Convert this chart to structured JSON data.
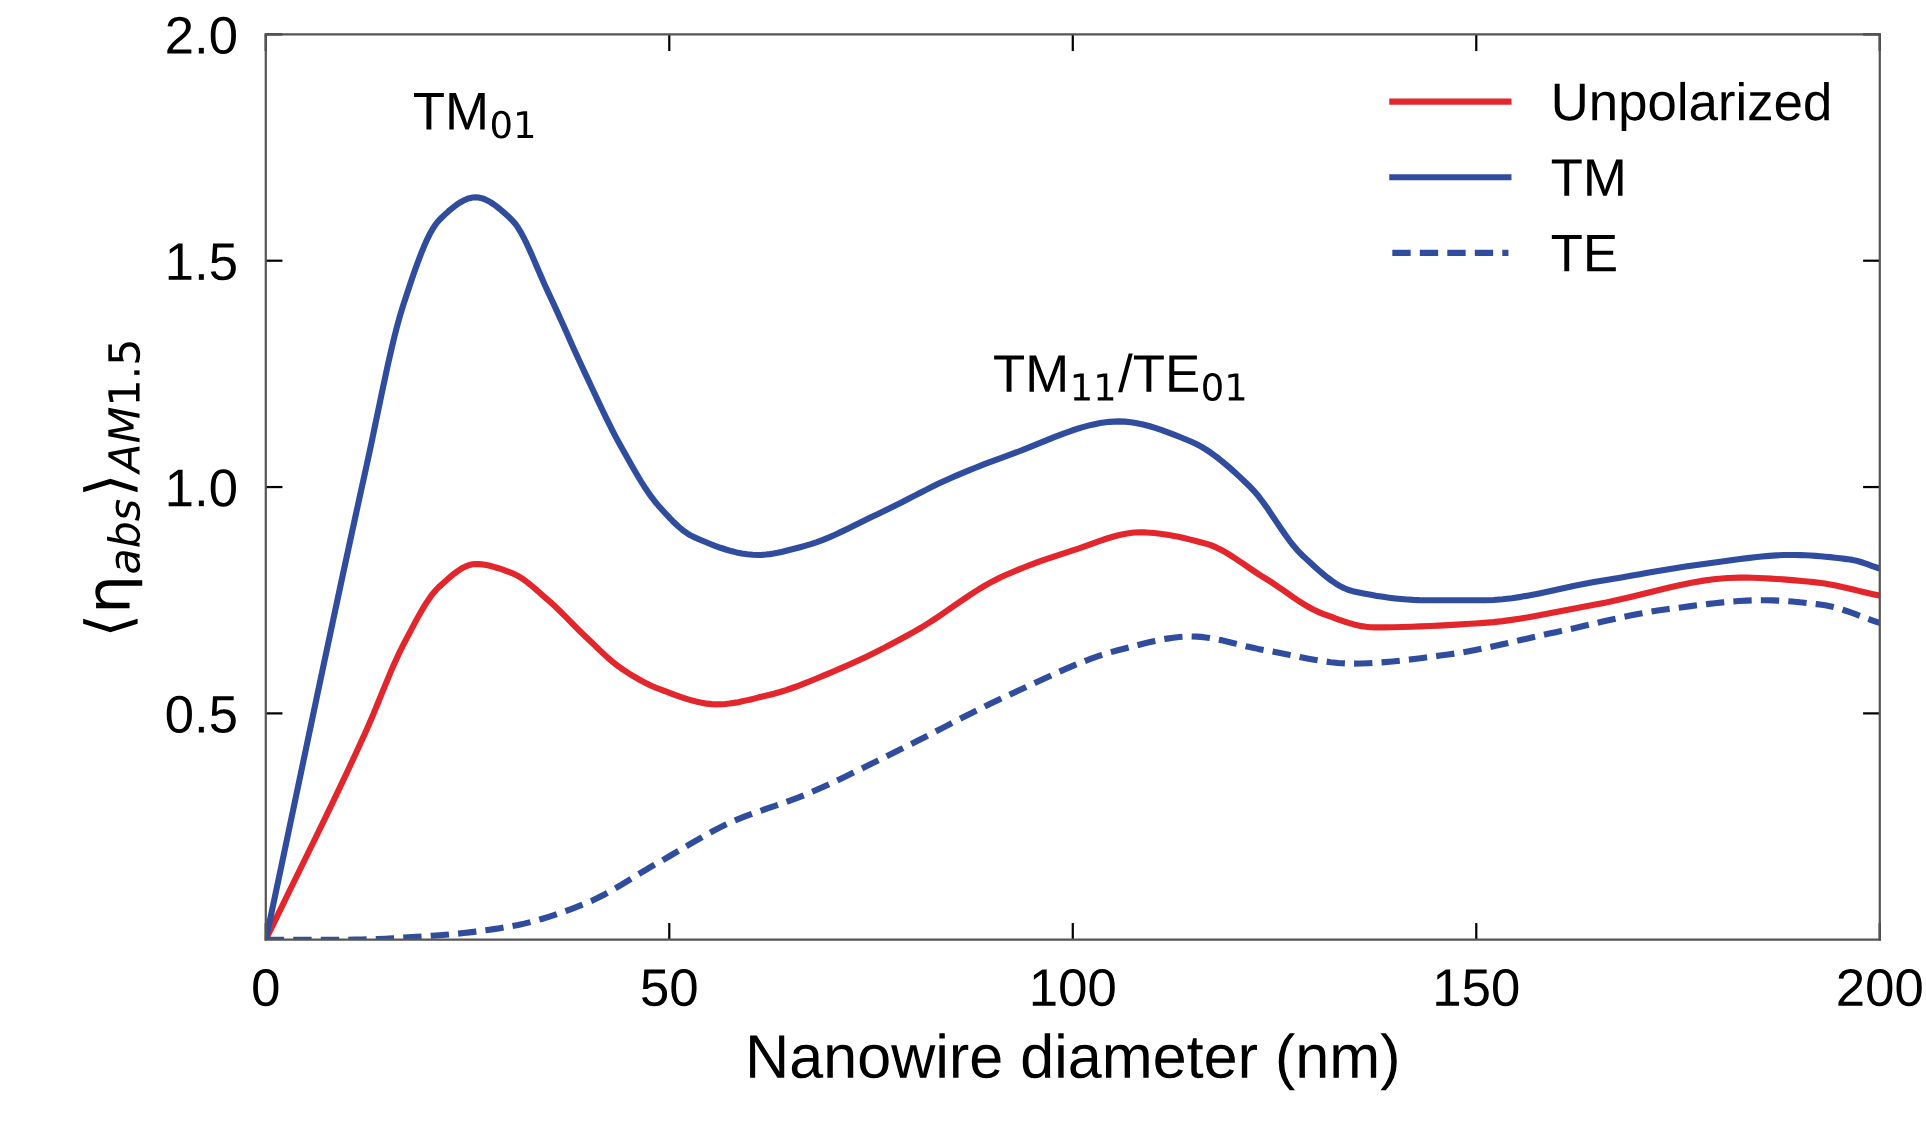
{
  "chart_data": {
    "type": "line",
    "xlabel": "Nanowire diameter (nm)",
    "ylabel": "⟨η$_{abs}$⟩$_{AM1.5}$",
    "xlim": [
      0,
      200
    ],
    "ylim": [
      0,
      2
    ],
    "xticks": [
      0,
      50,
      100,
      150,
      200
    ],
    "yticks": [
      0.5,
      {
        "value": 1,
        "label": "1.0"
      },
      1.5,
      {
        "value": 2,
        "label": "2.0"
      }
    ],
    "grid": false,
    "legend": "top right",
    "annotations": [
      "TM$_{01}$",
      "TM$_{11}$/TE$_{01}$"
    ],
    "series": [
      {
        "name": "Unpolarized",
        "color": "#e3262c",
        "line_style": "solid",
        "x": [
          0,
          12.4,
          17,
          21.5,
          26,
          30.5,
          35,
          39.6,
          44,
          48.6,
          55.9,
          62.2,
          71.3,
          80.3,
          91,
          100,
          108.3,
          116.5,
          123.7,
          131,
          137.4,
          151,
          164.6,
          182.7,
          191.8,
          200
        ],
        "values": [
          0,
          0.46,
          0.65,
          0.78,
          0.83,
          0.81,
          0.75,
          0.67,
          0.6,
          0.555,
          0.52,
          0.54,
          0.6,
          0.68,
          0.8,
          0.86,
          0.9,
          0.875,
          0.8,
          0.72,
          0.69,
          0.7,
          0.74,
          0.8,
          0.79,
          0.76
        ]
      },
      {
        "name": "TM",
        "color": "#2f4c9f",
        "line_style": "solid",
        "x": [
          0,
          12.4,
          17,
          21.5,
          26,
          30.5,
          35,
          39.6,
          44,
          48.6,
          53,
          61,
          66.8,
          75.8,
          84.9,
          92,
          105.7,
          114.7,
          122,
          128.4,
          134.7,
          143.7,
          151,
          164.6,
          178.2,
          189,
          196.3,
          200
        ],
        "values": [
          0,
          1.04,
          1.4,
          1.59,
          1.64,
          1.59,
          1.43,
          1.25,
          1.09,
          0.96,
          0.89,
          0.85,
          0.87,
          0.94,
          1.02,
          1.07,
          1.145,
          1.1,
          1.0,
          0.85,
          0.77,
          0.75,
          0.75,
          0.79,
          0.83,
          0.85,
          0.84,
          0.82
        ]
      },
      {
        "name": "TE",
        "color": "#2f4c9f",
        "line_style": "dashed",
        "x": [
          0,
          10,
          21.5,
          30.5,
          39.6,
          48.6,
          57.7,
          66.8,
          78.6,
          92,
          105.7,
          114.7,
          123.7,
          134.7,
          146.5,
          160,
          173.6,
          185.5,
          192.8,
          200
        ],
        "values": [
          0,
          0.0,
          0.01,
          0.03,
          0.08,
          0.17,
          0.26,
          0.32,
          0.42,
          0.54,
          0.64,
          0.67,
          0.64,
          0.61,
          0.63,
          0.68,
          0.73,
          0.75,
          0.74,
          0.7
        ]
      }
    ]
  }
}
